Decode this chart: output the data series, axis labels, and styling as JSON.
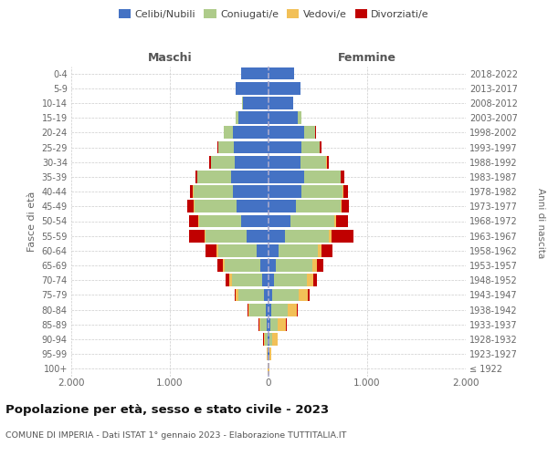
{
  "age_groups": [
    "100+",
    "95-99",
    "90-94",
    "85-89",
    "80-84",
    "75-79",
    "70-74",
    "65-69",
    "60-64",
    "55-59",
    "50-54",
    "45-49",
    "40-44",
    "35-39",
    "30-34",
    "25-29",
    "20-24",
    "15-19",
    "10-14",
    "5-9",
    "0-4"
  ],
  "birth_years": [
    "≤ 1922",
    "1923-1927",
    "1928-1932",
    "1933-1937",
    "1938-1942",
    "1943-1947",
    "1948-1952",
    "1953-1957",
    "1958-1962",
    "1963-1967",
    "1968-1972",
    "1973-1977",
    "1978-1982",
    "1983-1987",
    "1988-1992",
    "1993-1997",
    "1998-2002",
    "2003-2007",
    "2008-2012",
    "2013-2017",
    "2018-2022"
  ],
  "male": {
    "celibe": [
      2,
      5,
      10,
      15,
      30,
      50,
      65,
      80,
      120,
      220,
      280,
      320,
      360,
      380,
      340,
      350,
      360,
      310,
      260,
      330,
      280
    ],
    "coniugato": [
      2,
      8,
      30,
      70,
      160,
      260,
      310,
      360,
      390,
      420,
      420,
      430,
      400,
      340,
      240,
      160,
      90,
      25,
      4,
      1,
      1
    ],
    "vedovo": [
      1,
      3,
      10,
      10,
      15,
      20,
      25,
      20,
      15,
      10,
      10,
      5,
      5,
      3,
      3,
      2,
      1,
      1,
      0,
      0,
      0
    ],
    "divorziato": [
      0,
      1,
      3,
      5,
      8,
      15,
      35,
      60,
      110,
      160,
      100,
      65,
      35,
      20,
      15,
      8,
      4,
      1,
      0,
      0,
      0
    ]
  },
  "female": {
    "nubile": [
      2,
      5,
      10,
      15,
      25,
      35,
      55,
      75,
      100,
      170,
      220,
      280,
      330,
      360,
      320,
      330,
      360,
      300,
      250,
      320,
      260
    ],
    "coniugata": [
      2,
      8,
      30,
      75,
      170,
      275,
      330,
      370,
      400,
      440,
      450,
      450,
      420,
      370,
      265,
      190,
      110,
      30,
      4,
      1,
      1
    ],
    "vedova": [
      2,
      15,
      50,
      90,
      90,
      85,
      65,
      45,
      35,
      25,
      18,
      8,
      6,
      4,
      4,
      2,
      1,
      1,
      0,
      0,
      0
    ],
    "divorziata": [
      0,
      1,
      5,
      8,
      12,
      20,
      40,
      65,
      115,
      230,
      120,
      80,
      50,
      30,
      20,
      12,
      6,
      2,
      0,
      0,
      0
    ]
  },
  "colors": {
    "celibe": "#4472C4",
    "coniugato": "#AECB8A",
    "vedovo": "#F2C057",
    "divorziato": "#C00000"
  },
  "xlim": 2000,
  "title": "Popolazione per età, sesso e stato civile - 2023",
  "subtitle": "COMUNE DI IMPERIA - Dati ISTAT 1° gennaio 2023 - Elaborazione TUTTITALIA.IT",
  "ylabel": "Fasce di età",
  "right_label": "Anni di nascita",
  "background_color": "#FFFFFF"
}
